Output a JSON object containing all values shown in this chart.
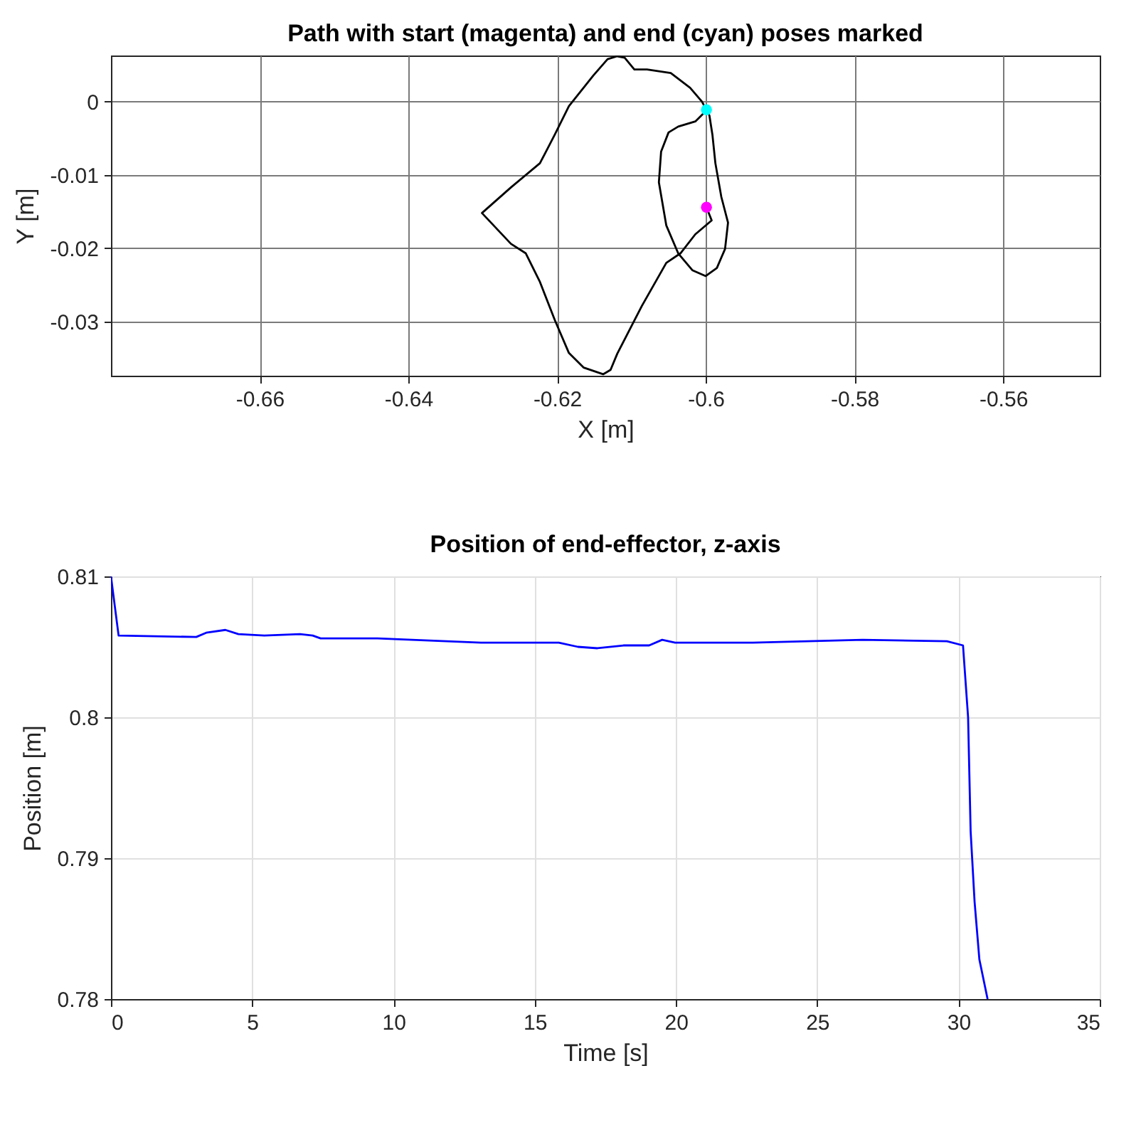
{
  "chart_data": [
    {
      "type": "line",
      "title": "Path with start (magenta) and end (cyan) poses marked",
      "xlabel": "X [m]",
      "ylabel": "Y [m]",
      "series": [
        {
          "color": "#000000",
          "x": [
            -0.5999,
            -0.5992,
            -0.6014,
            -0.6034,
            -0.6053,
            -0.6086,
            -0.6119,
            -0.6128,
            -0.6138,
            -0.6164,
            -0.6184,
            -0.6203,
            -0.6223,
            -0.6242,
            -0.6262,
            -0.6301,
            -0.6262,
            -0.6223,
            -0.6203,
            -0.6184,
            -0.6151,
            -0.6132,
            -0.6119,
            -0.6109,
            -0.6096,
            -0.6079,
            -0.6047,
            -0.6021,
            -0.6005,
            -0.5995,
            -0.5991,
            -0.5987,
            -0.5979,
            -0.597,
            -0.5974,
            -0.5985,
            -0.6,
            -0.6018,
            -0.6037,
            -0.6053,
            -0.6063,
            -0.606,
            -0.605,
            -0.6037,
            -0.6014,
            -0.6,
            -0.5999
          ],
          "values": [
            -0.0144,
            -0.0162,
            -0.0181,
            -0.0207,
            -0.022,
            -0.0279,
            -0.0344,
            -0.0366,
            -0.0372,
            -0.0363,
            -0.0343,
            -0.0298,
            -0.0246,
            -0.0207,
            -0.0194,
            -0.0152,
            -0.0117,
            -0.0084,
            -0.0045,
            -0.0006,
            0.0036,
            0.0058,
            0.0062,
            0.006,
            0.0044,
            0.0044,
            0.0039,
            0.0019,
            0.0,
            -0.0019,
            -0.0045,
            -0.0084,
            -0.013,
            -0.0165,
            -0.0201,
            -0.0227,
            -0.0238,
            -0.023,
            -0.0207,
            -0.0169,
            -0.011,
            -0.0068,
            -0.0042,
            -0.0034,
            -0.0027,
            -0.0013,
            -0.0011
          ]
        },
        {
          "type": "scatter",
          "color": "#ff00ff",
          "x": [
            -0.5999
          ],
          "values": [
            -0.0144
          ]
        },
        {
          "type": "scatter",
          "color": "#00ffff",
          "x": [
            -0.5999
          ],
          "values": [
            -0.0011
          ]
        }
      ],
      "xlim": [
        -0.68,
        -0.547
      ],
      "ylim": [
        -0.0374,
        0.0063
      ],
      "xticks": [
        -0.66,
        -0.64,
        -0.62,
        -0.6,
        -0.58,
        -0.56
      ],
      "yticks": [
        -0.03,
        -0.02,
        -0.01,
        0
      ],
      "grid": true
    },
    {
      "type": "line",
      "title": "Position of end-effector, z-axis",
      "xlabel": "Time [s]",
      "ylabel": "Position [m]",
      "series": [
        {
          "color": "#0000ff",
          "x": [
            0,
            0.27,
            3.02,
            3.37,
            4.05,
            4.51,
            5.43,
            6.69,
            7.14,
            7.42,
            9.43,
            13.1,
            15.85,
            16.53,
            17.22,
            18.14,
            19.05,
            19.51,
            19.97,
            22.72,
            26.61,
            29.59,
            30.16,
            30.34,
            30.43,
            30.57,
            30.74,
            31.03
          ],
          "values": [
            0.81,
            0.8058,
            0.8057,
            0.806,
            0.8062,
            0.8059,
            0.8058,
            0.8059,
            0.8058,
            0.8056,
            0.8056,
            0.8053,
            0.8053,
            0.805,
            0.8049,
            0.8051,
            0.8051,
            0.8055,
            0.8053,
            0.8053,
            0.8055,
            0.8054,
            0.8051,
            0.8,
            0.7919,
            0.7869,
            0.7828,
            0.78
          ]
        }
      ],
      "xlim": [
        0,
        35
      ],
      "ylim": [
        0.78,
        0.81
      ],
      "xticks": [
        0,
        5,
        10,
        15,
        20,
        25,
        30,
        35
      ],
      "yticks": [
        0.78,
        0.79,
        0.8,
        0.81
      ],
      "grid": true
    }
  ]
}
